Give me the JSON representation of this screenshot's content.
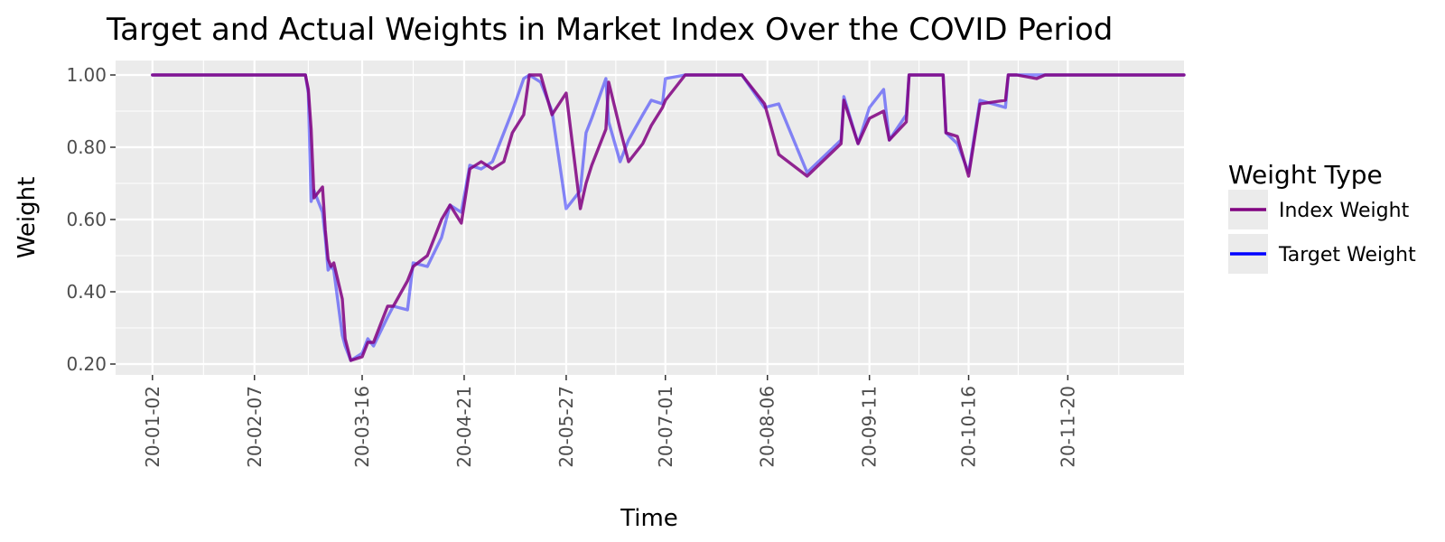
{
  "chart_data": {
    "type": "line",
    "title": "Target and Actual Weights in Market Index Over the COVID Period",
    "xlabel": "Time",
    "ylabel": "Weight",
    "ylim": [
      0.17,
      1.04
    ],
    "xlim": [
      "2019-12-20",
      "2020-12-31"
    ],
    "grid": true,
    "legend": {
      "title": "Weight Type",
      "placement": "right"
    },
    "x_ticks": [
      {
        "date": "2020-01-02",
        "label": "20-01-02"
      },
      {
        "date": "2020-02-07",
        "label": "20-02-07"
      },
      {
        "date": "2020-03-16",
        "label": "20-03-16"
      },
      {
        "date": "2020-04-21",
        "label": "20-04-21"
      },
      {
        "date": "2020-05-27",
        "label": "20-05-27"
      },
      {
        "date": "2020-07-01",
        "label": "20-07-01"
      },
      {
        "date": "2020-08-06",
        "label": "20-08-06"
      },
      {
        "date": "2020-09-11",
        "label": "20-09-11"
      },
      {
        "date": "2020-10-16",
        "label": "20-10-16"
      },
      {
        "date": "2020-11-20",
        "label": "20-11-20"
      }
    ],
    "y_ticks": [
      {
        "value": 0.2,
        "label": "0.20"
      },
      {
        "value": 0.4,
        "label": "0.40"
      },
      {
        "value": 0.6,
        "label": "0.60"
      },
      {
        "value": 0.8,
        "label": "0.80"
      },
      {
        "value": 1.0,
        "label": "1.00"
      }
    ],
    "series": [
      {
        "name": "Target Weight",
        "color": "#0000ff",
        "opacity": 0.45,
        "x": [
          "2020-01-02",
          "2020-02-25",
          "2020-02-26",
          "2020-02-27",
          "2020-02-28",
          "2020-03-02",
          "2020-03-03",
          "2020-03-04",
          "2020-03-05",
          "2020-03-06",
          "2020-03-09",
          "2020-03-10",
          "2020-03-12",
          "2020-03-16",
          "2020-03-18",
          "2020-03-20",
          "2020-03-25",
          "2020-03-27",
          "2020-04-01",
          "2020-04-03",
          "2020-04-08",
          "2020-04-13",
          "2020-04-16",
          "2020-04-20",
          "2020-04-23",
          "2020-04-27",
          "2020-05-01",
          "2020-05-05",
          "2020-05-08",
          "2020-05-12",
          "2020-05-14",
          "2020-05-18",
          "2020-05-22",
          "2020-05-27",
          "2020-06-01",
          "2020-06-03",
          "2020-06-05",
          "2020-06-10",
          "2020-06-11",
          "2020-06-15",
          "2020-06-18",
          "2020-06-23",
          "2020-06-26",
          "2020-06-30",
          "2020-07-01",
          "2020-07-08",
          "2020-07-13",
          "2020-07-17",
          "2020-07-23",
          "2020-07-28",
          "2020-08-05",
          "2020-08-10",
          "2020-08-20",
          "2020-09-01",
          "2020-09-02",
          "2020-09-07",
          "2020-09-11",
          "2020-09-16",
          "2020-09-18",
          "2020-09-24",
          "2020-09-25",
          "2020-09-30",
          "2020-10-02",
          "2020-10-07",
          "2020-10-08",
          "2020-10-12",
          "2020-10-16",
          "2020-10-20",
          "2020-10-29",
          "2020-10-30",
          "2020-11-02",
          "2020-11-09",
          "2020-11-12",
          "2020-11-19",
          "2020-11-20",
          "2020-11-24",
          "2020-11-27",
          "2020-12-31"
        ],
        "y": [
          1.0,
          1.0,
          0.95,
          0.65,
          0.68,
          0.62,
          0.55,
          0.46,
          0.47,
          0.46,
          0.28,
          0.25,
          0.21,
          0.23,
          0.27,
          0.25,
          0.33,
          0.36,
          0.35,
          0.48,
          0.47,
          0.55,
          0.64,
          0.62,
          0.75,
          0.74,
          0.76,
          0.84,
          0.9,
          0.99,
          1.0,
          0.98,
          0.9,
          0.63,
          0.68,
          0.84,
          0.88,
          0.99,
          0.87,
          0.76,
          0.82,
          0.89,
          0.93,
          0.92,
          0.99,
          1.0,
          1.0,
          1.0,
          1.0,
          1.0,
          0.91,
          0.92,
          0.73,
          0.82,
          0.94,
          0.81,
          0.91,
          0.96,
          0.82,
          0.89,
          1.0,
          1.0,
          1.0,
          1.0,
          0.84,
          0.81,
          0.73,
          0.93,
          0.91,
          1.0,
          1.0,
          1.0,
          1.0,
          1.0,
          1.0,
          1.0,
          1.0,
          1.0
        ]
      },
      {
        "name": "Index Weight",
        "color": "#800080",
        "opacity": 0.85,
        "x": [
          "2020-01-02",
          "2020-02-25",
          "2020-02-26",
          "2020-02-27",
          "2020-02-28",
          "2020-03-02",
          "2020-03-03",
          "2020-03-04",
          "2020-03-05",
          "2020-03-06",
          "2020-03-09",
          "2020-03-10",
          "2020-03-12",
          "2020-03-16",
          "2020-03-18",
          "2020-03-20",
          "2020-03-25",
          "2020-03-27",
          "2020-04-01",
          "2020-04-03",
          "2020-04-08",
          "2020-04-13",
          "2020-04-16",
          "2020-04-20",
          "2020-04-23",
          "2020-04-27",
          "2020-05-01",
          "2020-05-05",
          "2020-05-08",
          "2020-05-12",
          "2020-05-14",
          "2020-05-18",
          "2020-05-22",
          "2020-05-27",
          "2020-06-01",
          "2020-06-03",
          "2020-06-05",
          "2020-06-10",
          "2020-06-11",
          "2020-06-15",
          "2020-06-18",
          "2020-06-23",
          "2020-06-26",
          "2020-06-30",
          "2020-07-01",
          "2020-07-08",
          "2020-07-13",
          "2020-07-17",
          "2020-07-23",
          "2020-07-28",
          "2020-08-05",
          "2020-08-10",
          "2020-08-20",
          "2020-09-01",
          "2020-09-02",
          "2020-09-07",
          "2020-09-11",
          "2020-09-16",
          "2020-09-18",
          "2020-09-24",
          "2020-09-25",
          "2020-09-30",
          "2020-10-02",
          "2020-10-07",
          "2020-10-08",
          "2020-10-12",
          "2020-10-16",
          "2020-10-20",
          "2020-10-29",
          "2020-10-30",
          "2020-11-02",
          "2020-11-09",
          "2020-11-12",
          "2020-11-19",
          "2020-11-20",
          "2020-11-24",
          "2020-11-27",
          "2020-12-31"
        ],
        "y": [
          1.0,
          1.0,
          0.96,
          0.85,
          0.66,
          0.69,
          0.57,
          0.49,
          0.47,
          0.48,
          0.38,
          0.27,
          0.21,
          0.22,
          0.26,
          0.26,
          0.36,
          0.36,
          0.43,
          0.47,
          0.5,
          0.6,
          0.64,
          0.59,
          0.74,
          0.76,
          0.74,
          0.76,
          0.84,
          0.89,
          1.0,
          1.0,
          0.89,
          0.95,
          0.63,
          0.7,
          0.75,
          0.85,
          0.98,
          0.85,
          0.76,
          0.81,
          0.86,
          0.91,
          0.93,
          1.0,
          1.0,
          1.0,
          1.0,
          1.0,
          0.92,
          0.78,
          0.72,
          0.81,
          0.93,
          0.81,
          0.88,
          0.9,
          0.82,
          0.87,
          1.0,
          1.0,
          1.0,
          1.0,
          0.84,
          0.83,
          0.72,
          0.92,
          0.93,
          1.0,
          1.0,
          0.99,
          1.0,
          1.0,
          1.0,
          1.0,
          1.0,
          1.0
        ]
      }
    ]
  }
}
